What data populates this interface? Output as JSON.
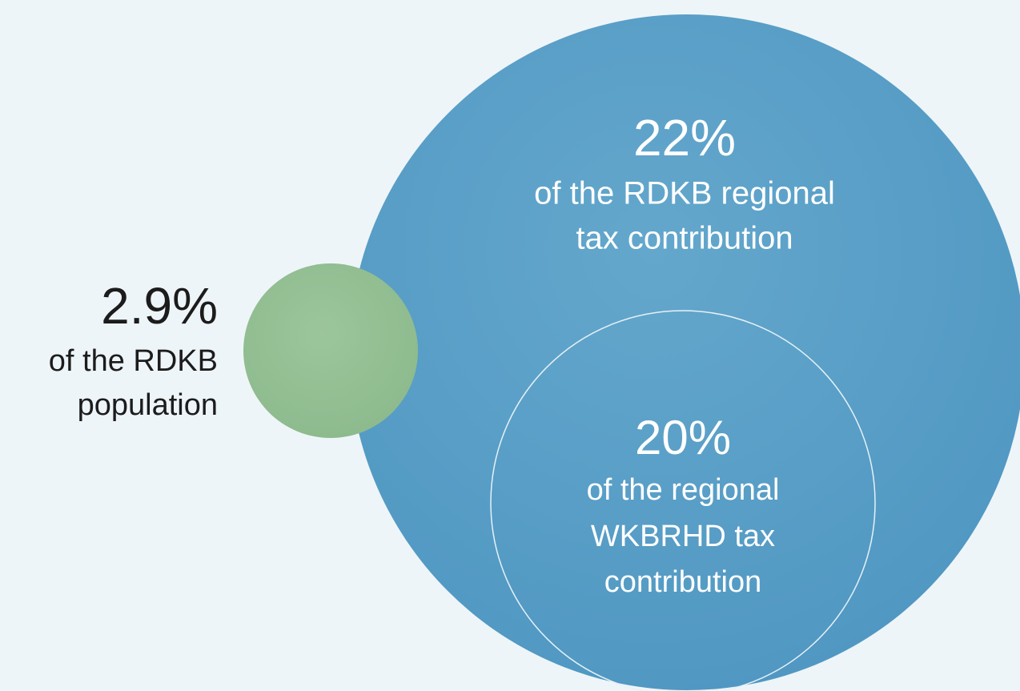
{
  "regional_tax": {
    "value": "22%",
    "lines": [
      "of the RDKB regional",
      "tax contribution"
    ]
  },
  "wkbrhd_tax": {
    "value": "20%",
    "lines": [
      "of the regional",
      "WKBRHD tax",
      "contribution"
    ]
  },
  "population": {
    "value": "2.9%",
    "lines": [
      "of the RDKB",
      "population"
    ]
  }
}
